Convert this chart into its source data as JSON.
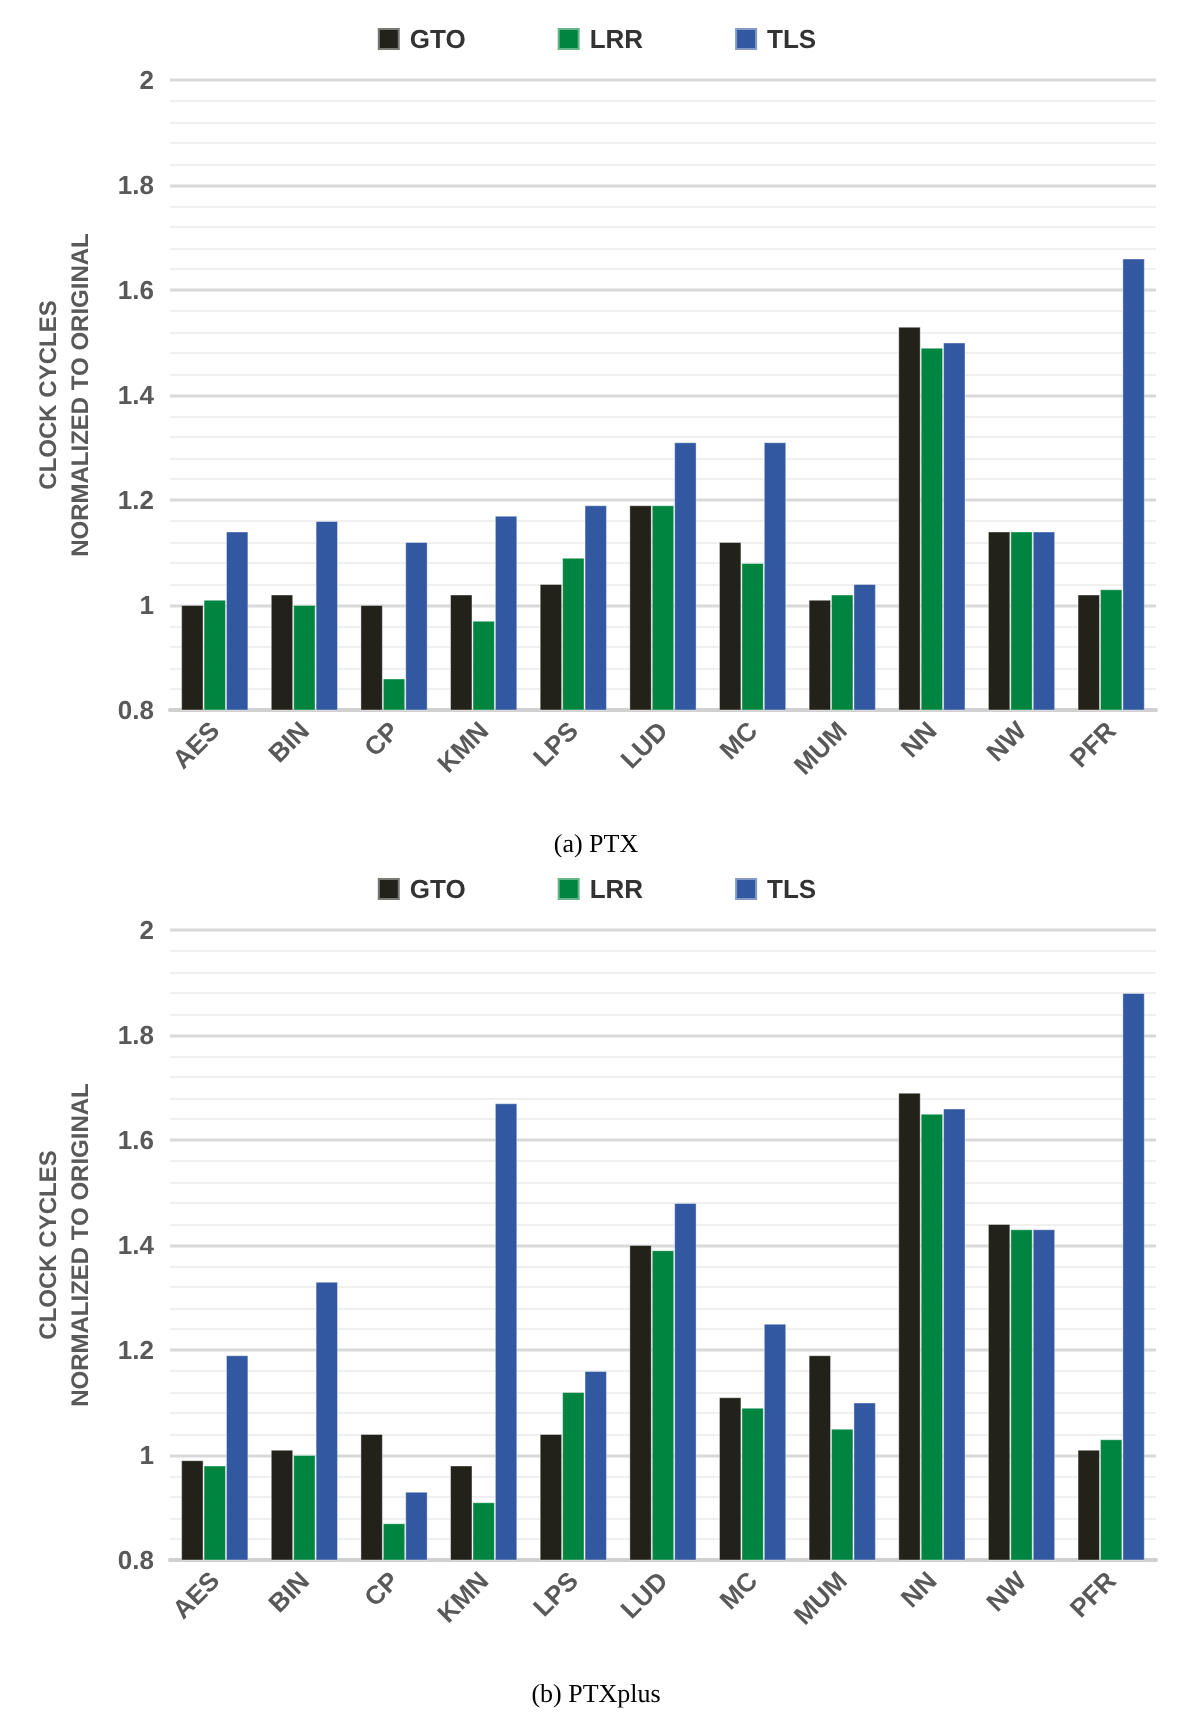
{
  "chart_data": [
    {
      "type": "bar",
      "title": "(a) PTX",
      "ylabel": "CLOCK CYCLES\nNORMALIZED TO ORIGINAL",
      "categories": [
        "AES",
        "BIN",
        "CP",
        "KMN",
        "LPS",
        "LUD",
        "MC",
        "MUM",
        "NN",
        "NW",
        "PFR"
      ],
      "series": [
        {
          "name": "GTO",
          "color": "#22221a",
          "values": [
            1.0,
            1.02,
            1.0,
            1.02,
            1.04,
            1.19,
            1.12,
            1.01,
            1.53,
            1.14,
            1.02
          ]
        },
        {
          "name": "LRR",
          "color": "#008540",
          "values": [
            1.01,
            1.0,
            0.86,
            0.97,
            1.09,
            1.19,
            1.08,
            1.02,
            1.49,
            1.14,
            1.03
          ]
        },
        {
          "name": "TLS",
          "color": "#3158a0",
          "values": [
            1.14,
            1.16,
            1.12,
            1.17,
            1.19,
            1.31,
            1.31,
            1.04,
            1.5,
            1.14,
            1.66
          ]
        }
      ],
      "ylim": [
        0.8,
        2
      ],
      "yticks": [
        0.8,
        1,
        1.2,
        1.4,
        1.6,
        1.8,
        2
      ],
      "grid": "y",
      "legend": "top"
    },
    {
      "type": "bar",
      "title": "(b) PTXplus",
      "ylabel": "CLOCK CYCLES\nNORMALIZED TO ORIGINAL",
      "categories": [
        "AES",
        "BIN",
        "CP",
        "KMN",
        "LPS",
        "LUD",
        "MC",
        "MUM",
        "NN",
        "NW",
        "PFR"
      ],
      "series": [
        {
          "name": "GTO",
          "color": "#22221a",
          "values": [
            0.99,
            1.01,
            1.04,
            0.98,
            1.04,
            1.4,
            1.11,
            1.19,
            1.69,
            1.44,
            1.01
          ]
        },
        {
          "name": "LRR",
          "color": "#008540",
          "values": [
            0.98,
            1.0,
            0.87,
            0.91,
            1.12,
            1.39,
            1.09,
            1.05,
            1.65,
            1.43,
            1.03
          ]
        },
        {
          "name": "TLS",
          "color": "#3158a0",
          "values": [
            1.19,
            1.33,
            0.93,
            1.67,
            1.16,
            1.48,
            1.25,
            1.1,
            1.66,
            1.43,
            1.88
          ]
        }
      ],
      "ylim": [
        0.8,
        2
      ],
      "yticks": [
        0.8,
        1,
        1.2,
        1.4,
        1.6,
        1.8,
        2
      ],
      "grid": "y",
      "legend": "top"
    }
  ]
}
